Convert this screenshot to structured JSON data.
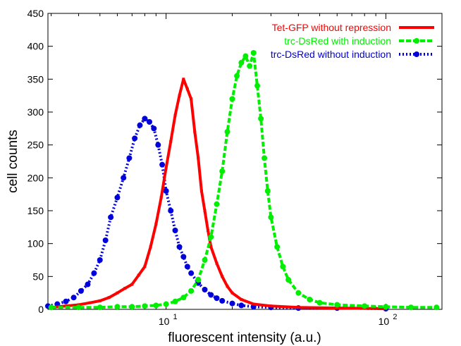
{
  "chart_data": {
    "type": "line",
    "xlabel": "fluorescent intensity (a.u.)",
    "ylabel": "cell counts",
    "xscale": "log",
    "xlim": [
      2.9,
      180
    ],
    "ylim": [
      0,
      450
    ],
    "yticks": [
      0,
      50,
      100,
      150,
      200,
      250,
      300,
      350,
      400,
      450
    ],
    "xticks": [
      {
        "value": 10,
        "base": "10",
        "exp": "1"
      },
      {
        "value": 100,
        "base": "10",
        "exp": "2"
      }
    ],
    "grid": false,
    "legend_position": "top-right",
    "series": [
      {
        "name": "Tet-GFP without repression",
        "color": "#ff0000",
        "style": "solid",
        "x": [
          3.0,
          3.5,
          4.0,
          4.5,
          5.0,
          5.5,
          6.0,
          6.5,
          7.0,
          7.5,
          8.0,
          8.5,
          9.0,
          9.5,
          10.0,
          10.5,
          11.0,
          11.5,
          12.0,
          12.5,
          13.0,
          13.5,
          14.0,
          14.5,
          15.0,
          15.5,
          16.0,
          17.0,
          18.0,
          19.0,
          20.0,
          22.0,
          25.0,
          30.0,
          40.0,
          60.0,
          100.0
        ],
        "y": [
          3,
          5,
          7,
          10,
          13,
          18,
          25,
          32,
          38,
          52,
          65,
          95,
          130,
          170,
          215,
          255,
          295,
          325,
          350,
          335,
          320,
          270,
          230,
          180,
          150,
          120,
          95,
          70,
          50,
          35,
          25,
          15,
          8,
          5,
          3,
          2,
          1
        ]
      },
      {
        "name": "trc-DsRed with induction",
        "color": "#00ee00",
        "style": "dashed",
        "x": [
          3.0,
          4.0,
          5.0,
          6.0,
          7.0,
          8.0,
          9.0,
          10.0,
          11.0,
          12.0,
          13.0,
          14.0,
          15.0,
          16.0,
          17.0,
          18.0,
          19.0,
          20.0,
          21.0,
          22.0,
          23.0,
          24.0,
          25.0,
          26.0,
          27.0,
          28.0,
          29.0,
          30.0,
          32.0,
          34.0,
          36.0,
          40.0,
          45.0,
          50.0,
          60.0,
          80.0,
          100.0,
          130.0,
          170.0
        ],
        "y": [
          3,
          3,
          3,
          4,
          4,
          5,
          6,
          8,
          12,
          18,
          28,
          45,
          75,
          110,
          160,
          210,
          270,
          320,
          355,
          375,
          385,
          370,
          390,
          340,
          290,
          230,
          180,
          140,
          95,
          65,
          45,
          25,
          15,
          10,
          7,
          5,
          4,
          3,
          3
        ]
      },
      {
        "name": "trc-DsRed without induction",
        "color": "#0000dd",
        "style": "dotted",
        "x": [
          2.9,
          3.2,
          3.5,
          3.8,
          4.1,
          4.4,
          4.7,
          5.0,
          5.3,
          5.6,
          6.0,
          6.4,
          6.8,
          7.2,
          7.6,
          8.0,
          8.4,
          8.8,
          9.2,
          9.6,
          10.0,
          10.5,
          11.0,
          11.5,
          12.0,
          12.5,
          13.0,
          14.0,
          15.0,
          16.0,
          17.0,
          18.0,
          20.0,
          22.0,
          25.0,
          30.0,
          40.0,
          60.0,
          100.0
        ],
        "y": [
          5,
          8,
          12,
          18,
          28,
          38,
          55,
          75,
          105,
          140,
          170,
          200,
          230,
          260,
          280,
          290,
          285,
          275,
          250,
          220,
          180,
          150,
          120,
          95,
          80,
          65,
          55,
          40,
          30,
          22,
          17,
          13,
          9,
          6,
          4,
          3,
          2,
          2,
          1
        ]
      }
    ]
  }
}
